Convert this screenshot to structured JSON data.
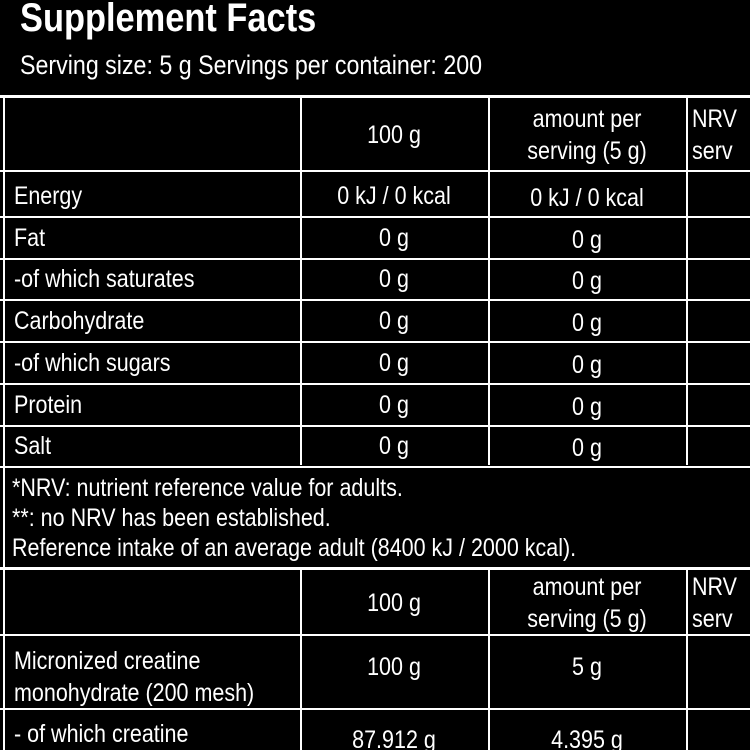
{
  "header": {
    "title": "Supplement Facts",
    "serving": "Serving size: 5 g Servings per container: 200"
  },
  "table1": {
    "columns": [
      [
        "100 g"
      ],
      [
        "amount per",
        "serving (5 g)"
      ],
      [
        "NRV",
        "serv"
      ]
    ],
    "rows": [
      [
        "Energy",
        "0 kJ / 0 kcal",
        "0 kJ / 0 kcal"
      ],
      [
        "Fat",
        "0 g",
        "0 g"
      ],
      [
        "-of which saturates",
        "0 g",
        "0 g"
      ],
      [
        "Carbohydrate",
        "0 g",
        "0 g"
      ],
      [
        "-of which sugars",
        "0 g",
        "0 g"
      ],
      [
        "Protein",
        "0 g",
        "0 g"
      ],
      [
        "Salt",
        "0 g",
        "0 g"
      ]
    ]
  },
  "footnotes": [
    "*NRV: nutrient reference value for adults.",
    "**: no NRV has been established.",
    "Reference intake of an average adult (8400 kJ / 2000 kcal)."
  ],
  "table2": {
    "columns": [
      [
        "100 g"
      ],
      [
        "amount per",
        "serving (5 g)"
      ],
      [
        "NRV",
        "serv"
      ]
    ],
    "rows": [
      {
        "label": [
          "Micronized creatine",
          "monohydrate (200 mesh)"
        ],
        "values": [
          "100 g",
          "5 g"
        ]
      },
      {
        "label": [
          "- of which creatine"
        ],
        "values": [
          "87.912 g",
          "4.395 g"
        ]
      }
    ]
  }
}
